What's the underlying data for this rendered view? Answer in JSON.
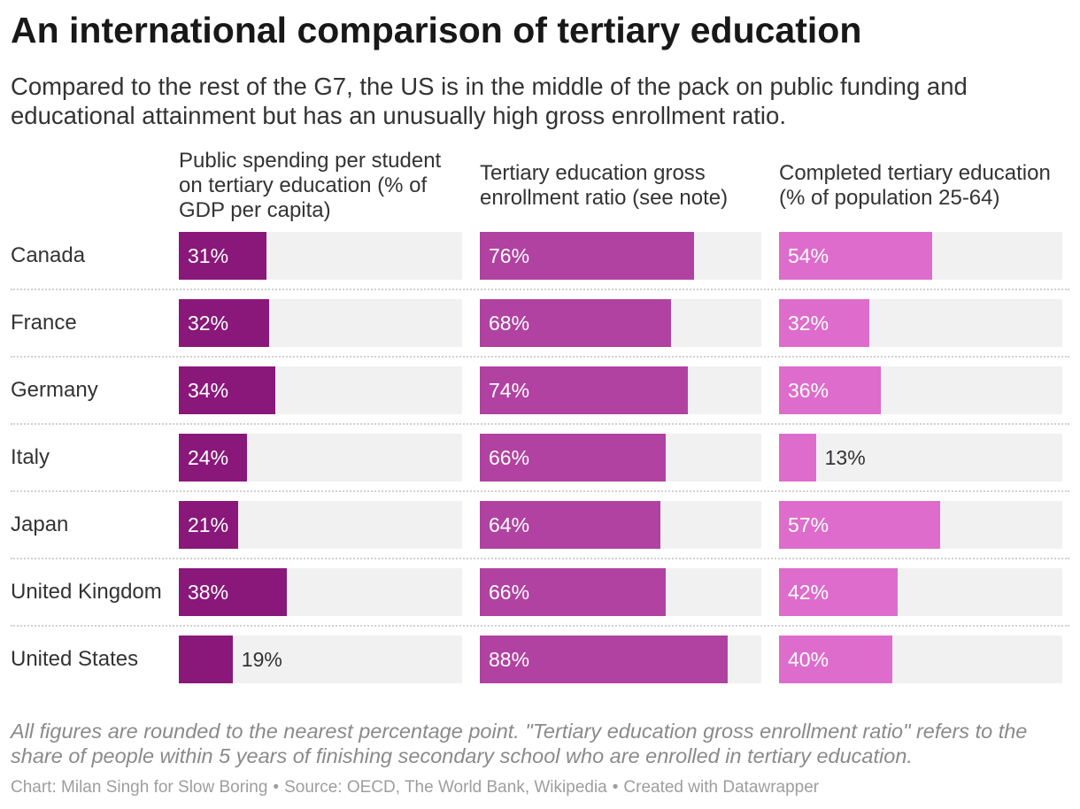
{
  "chart_data": {
    "type": "bar",
    "orientation": "horizontal",
    "title": "An international comparison of tertiary education",
    "subtitle": "Compared to the rest of the G7, the US is in the middle of the pack on public funding and educational attainment but has an unusually high gross enrollment ratio.",
    "categories": [
      "Canada",
      "France",
      "Germany",
      "Italy",
      "Japan",
      "United Kingdom",
      "United States"
    ],
    "series": [
      {
        "name": "Public spending per student on tertiary education (% of GDP per capita)",
        "values": [
          31,
          32,
          34,
          24,
          21,
          38,
          19
        ],
        "color": "#8a187a"
      },
      {
        "name": "Tertiary education gross enrollment ratio (see note)",
        "values": [
          76,
          68,
          74,
          66,
          64,
          66,
          88
        ],
        "color": "#b142a1"
      },
      {
        "name": "Completed tertiary education (% of population 25-64)",
        "values": [
          54,
          32,
          36,
          13,
          57,
          42,
          40
        ],
        "color": "#de6ccc"
      }
    ],
    "value_suffix": "%",
    "xlim": [
      0,
      100
    ],
    "grid": false,
    "track_color": "#f1f1f1"
  },
  "notes": "All figures are rounded to the nearest percentage point. \"Tertiary education gross enrollment ratio\" refers to the share of people within 5 years of finishing secondary school who are enrolled in tertiary education.",
  "footer": {
    "byline": "Chart: Milan Singh for Slow Boring",
    "source": "Source: OECD, The World Bank, Wikipedia",
    "credit": "Created with Datawrapper",
    "separator": "•"
  }
}
